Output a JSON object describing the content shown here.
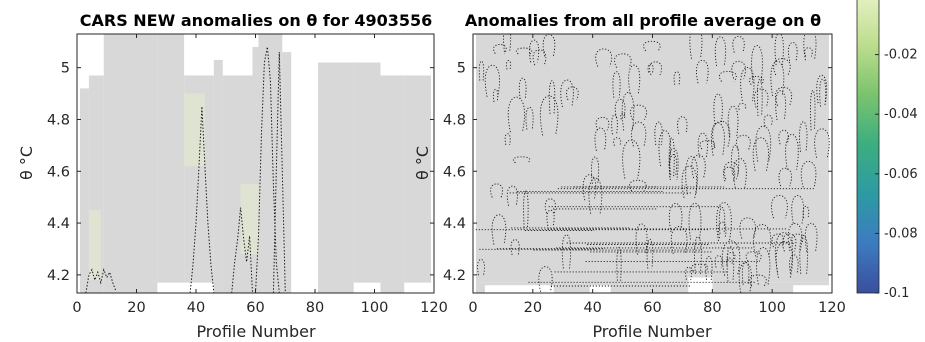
{
  "chart_data": [
    {
      "type": "heatmap",
      "subtype": "contour",
      "title": "CARS NEW anomalies on θ for 4903556",
      "xlabel": "Profile Number",
      "ylabel": "θ °C",
      "xlim": [
        0,
        120
      ],
      "ylim": [
        4.13,
        5.13
      ],
      "xticks": [
        "0",
        "20",
        "40",
        "60",
        "80",
        "100",
        "120"
      ],
      "yticks": [
        "4.2",
        "4.4",
        "4.6",
        "4.8",
        "5"
      ],
      "xtick_values": [
        0,
        20,
        40,
        60,
        80,
        100,
        120
      ],
      "ytick_values": [
        4.2,
        4.4,
        4.6,
        4.8,
        5.0
      ],
      "grid": false,
      "fill_color": "#d8d8d8",
      "tint_color": "#e2e8cf",
      "gap_color": "#ffffff",
      "coverage": [
        {
          "x": [
            1,
            4
          ],
          "y": [
            4.13,
            4.92
          ]
        },
        {
          "x": [
            4,
            9
          ],
          "y": [
            4.13,
            4.97
          ]
        },
        {
          "x": [
            9,
            27
          ],
          "y": [
            4.13,
            5.13
          ]
        },
        {
          "x": [
            27,
            36
          ],
          "y": [
            4.17,
            5.13
          ]
        },
        {
          "x": [
            36,
            46
          ],
          "y": [
            4.17,
            4.97
          ]
        },
        {
          "x": [
            46,
            49
          ],
          "y": [
            4.13,
            5.03
          ]
        },
        {
          "x": [
            49,
            59
          ],
          "y": [
            4.13,
            4.97
          ]
        },
        {
          "x": [
            59,
            61
          ],
          "y": [
            4.13,
            5.08
          ]
        },
        {
          "x": [
            61,
            69
          ],
          "y": [
            4.13,
            5.13
          ]
        },
        {
          "x": [
            69,
            72
          ],
          "y": [
            4.13,
            5.06
          ]
        },
        {
          "x": [
            81,
            93
          ],
          "y": [
            4.13,
            5.02
          ]
        },
        {
          "x": [
            93,
            102
          ],
          "y": [
            4.17,
            5.02
          ]
        },
        {
          "x": [
            102,
            110
          ],
          "y": [
            4.13,
            4.97
          ]
        },
        {
          "x": [
            110,
            119
          ],
          "y": [
            4.17,
            4.97
          ]
        }
      ],
      "tint_regions": [
        {
          "x": [
            4,
            8
          ],
          "y": [
            4.18,
            4.45
          ]
        },
        {
          "x": [
            36,
            43
          ],
          "y": [
            4.62,
            4.9
          ]
        },
        {
          "x": [
            55,
            61
          ],
          "y": [
            4.28,
            4.55
          ]
        }
      ],
      "zero_contours": [
        {
          "x": [
            3,
            4,
            5,
            6,
            7,
            8,
            9,
            10,
            11,
            12,
            13
          ],
          "y": [
            4.13,
            4.2,
            4.22,
            4.18,
            4.21,
            4.17,
            4.22,
            4.19,
            4.21,
            4.17,
            4.14
          ]
        },
        {
          "x": [
            38,
            39,
            40,
            41,
            42,
            43,
            44,
            45,
            46
          ],
          "y": [
            4.13,
            4.24,
            4.4,
            4.62,
            4.85,
            4.62,
            4.4,
            4.24,
            4.13
          ]
        },
        {
          "x": [
            52,
            53,
            54,
            55,
            56,
            57,
            58,
            59
          ],
          "y": [
            4.13,
            4.25,
            4.34,
            4.46,
            4.34,
            4.25,
            4.35,
            4.13
          ]
        },
        {
          "x": [
            60,
            61,
            62,
            63,
            64,
            65,
            66,
            67,
            68
          ],
          "y": [
            4.13,
            4.35,
            4.75,
            5.02,
            5.08,
            4.95,
            4.55,
            4.25,
            4.13
          ]
        },
        {
          "x": [
            66,
            67,
            68,
            69,
            70
          ],
          "y": [
            4.13,
            4.6,
            5.06,
            4.6,
            4.13
          ]
        }
      ]
    },
    {
      "type": "heatmap",
      "subtype": "contour",
      "title": "Anomalies from all profile average on θ",
      "xlabel": "Profile Number",
      "ylabel": "θ °C",
      "xlim": [
        0,
        120
      ],
      "ylim": [
        4.13,
        5.13
      ],
      "xticks": [
        "0",
        "20",
        "40",
        "60",
        "80",
        "100",
        "120"
      ],
      "yticks": [
        "4.2",
        "4.4",
        "4.6",
        "4.8",
        "5"
      ],
      "xtick_values": [
        0,
        20,
        40,
        60,
        80,
        100,
        120
      ],
      "ytick_values": [
        4.2,
        4.4,
        4.6,
        4.8,
        5.0
      ],
      "grid": false,
      "fill_color": "#d8d8d8",
      "gap_color": "#ffffff",
      "coverage": [
        {
          "x": [
            1,
            119
          ],
          "y": [
            4.17,
            5.13
          ]
        },
        {
          "x": [
            1,
            72
          ],
          "y": [
            4.13,
            4.17
          ]
        },
        {
          "x": [
            80,
            119
          ],
          "y": [
            4.13,
            4.17
          ]
        }
      ],
      "gaps": [
        {
          "x": [
            4,
            27
          ],
          "y": [
            4.13,
            4.16
          ]
        },
        {
          "x": [
            39,
            46
          ],
          "y": [
            4.13,
            4.16
          ]
        },
        {
          "x": [
            72,
            80
          ],
          "y": [
            4.13,
            4.19
          ]
        },
        {
          "x": [
            107,
            119
          ],
          "y": [
            4.13,
            4.16
          ]
        }
      ],
      "contour_note": "dense dotted zero-anomaly contours throughout"
    }
  ],
  "colorbar": {
    "ticks": [
      "-0.02",
      "-0.04",
      "-0.06",
      "-0.08",
      "-0.1"
    ],
    "tick_values": [
      -0.02,
      -0.04,
      -0.06,
      -0.08,
      -0.1
    ],
    "range": [
      -0.1,
      0
    ],
    "colormap": "parula-like",
    "stops": [
      "#3a4f9e",
      "#3c7cc0",
      "#2d9aa3",
      "#3cae80",
      "#7cc46e",
      "#bcdd8d",
      "#e6f1c4"
    ]
  }
}
